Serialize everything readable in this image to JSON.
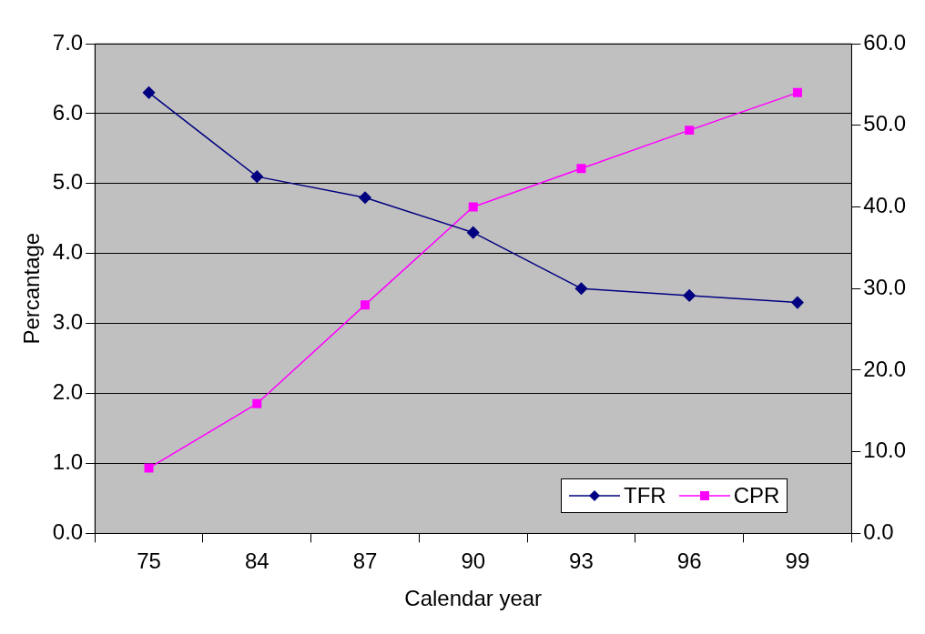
{
  "chart_data": {
    "type": "line",
    "xlabel": "Calendar year",
    "ylabel": "Percantage",
    "categories": [
      "75",
      "84",
      "87",
      "90",
      "93",
      "96",
      "99"
    ],
    "series": [
      {
        "name": "TFR",
        "color": "#000080",
        "marker": "diamond",
        "values": [
          6.3,
          5.1,
          4.8,
          4.3,
          3.5,
          3.4,
          3.3
        ]
      },
      {
        "name": "CPR",
        "color": "#ff00ff",
        "marker": "square",
        "axis": "y2",
        "values": [
          8.0,
          15.9,
          28.0,
          40.0,
          44.7,
          49.4,
          54.0
        ]
      }
    ],
    "ylim": [
      0,
      7
    ],
    "yticks": [
      {
        "value": 0,
        "label": "0.0"
      },
      {
        "value": 1,
        "label": "1.0"
      },
      {
        "value": 2,
        "label": "2.0"
      },
      {
        "value": 3,
        "label": "3.0"
      },
      {
        "value": 4,
        "label": "4.0"
      },
      {
        "value": 5,
        "label": "5.0"
      },
      {
        "value": 6,
        "label": "6.0"
      },
      {
        "value": 7,
        "label": "7.0"
      }
    ],
    "y2lim": [
      0,
      60
    ],
    "y2ticks": [
      {
        "value": 0,
        "label": "0.0"
      },
      {
        "value": 10,
        "label": "10.0"
      },
      {
        "value": 20,
        "label": "20.0"
      },
      {
        "value": 30,
        "label": "30.0"
      },
      {
        "value": 40,
        "label": "40.0"
      },
      {
        "value": 50,
        "label": "50.0"
      },
      {
        "value": 60,
        "label": "60.0"
      }
    ],
    "grid": "y",
    "legend": "bottom right",
    "line_style": "solid"
  }
}
